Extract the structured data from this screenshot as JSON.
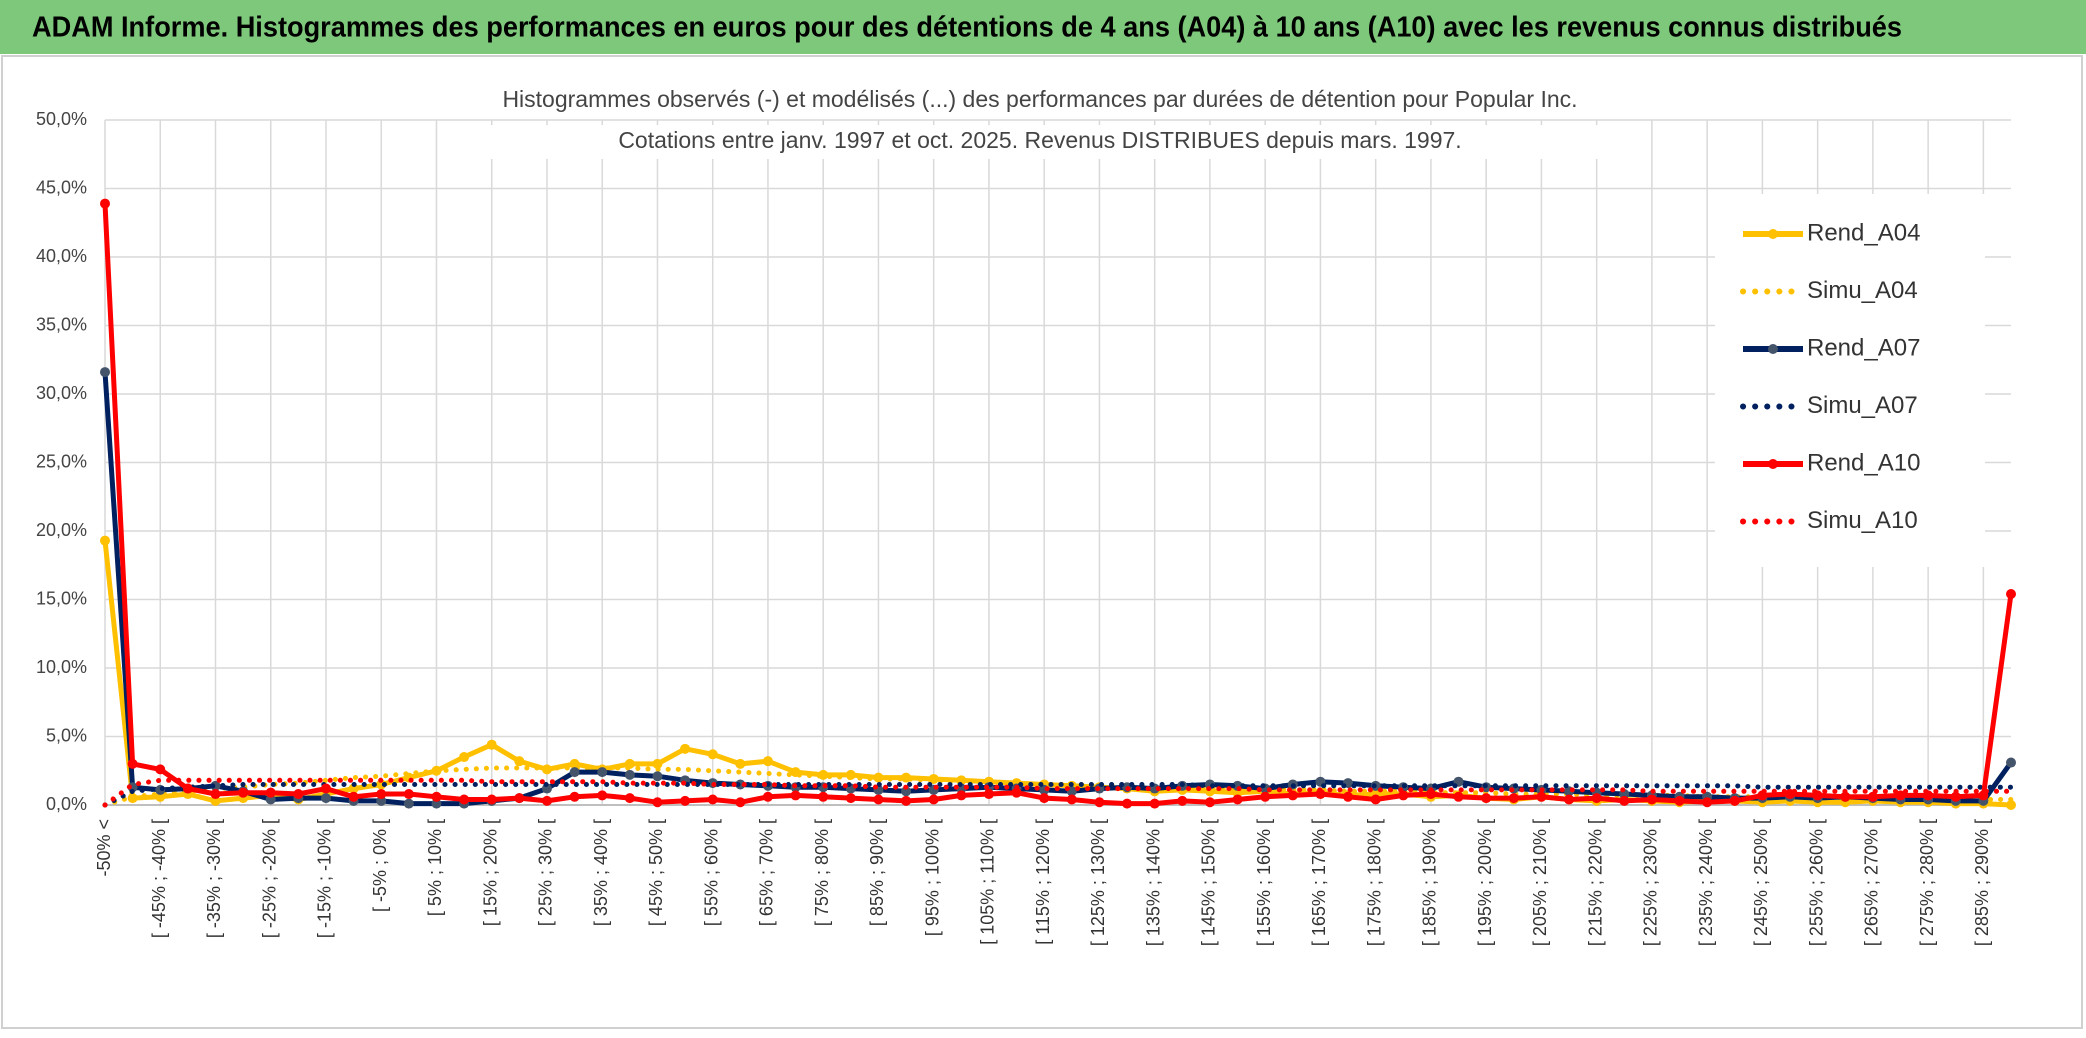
{
  "header": "ADAM Informe. Histogrammes des performances en euros pour des détentions de 4 ans (A04) à 10 ans (A10) avec les revenus connus distribués",
  "chart_data": {
    "type": "line",
    "title": [
      "Histogrammes observés (-) et modélisés (...) des performances par durées de détention pour Popular Inc.",
      "Cotations entre janv. 1997 et oct. 2025. Revenus DISTRIBUES depuis mars. 1997."
    ],
    "categories": [
      "-50% <",
      null,
      "[ -45% ; -40% [",
      null,
      "[ -35% ; -30% [",
      null,
      "[ -25% ; -20% [",
      null,
      "[ -15% ; -10% [",
      null,
      "[ -5% ; 0% [",
      null,
      "[ 5% ; 10% [",
      null,
      "[ 15% ; 20% [",
      null,
      "[ 25% ; 30% [",
      null,
      "[ 35% ; 40% [",
      null,
      "[ 45% ; 50% [",
      null,
      "[ 55% ; 60% [",
      null,
      "[ 65% ; 70% [",
      null,
      "[ 75% ; 80% [",
      null,
      "[ 85% ; 90% [",
      null,
      "[ 95% ; 100% [",
      null,
      "[ 105% ; 110% [",
      null,
      "[ 115% ; 120% [",
      null,
      "[ 125% ; 130% [",
      null,
      "[ 135% ; 140% [",
      null,
      "[ 145% ; 150% [",
      null,
      "[ 155% ; 160% [",
      null,
      "[ 165% ; 170% [",
      null,
      "[ 175% ; 180% [",
      null,
      "[ 185% ; 190% [",
      null,
      "[ 195% ; 200% [",
      null,
      "[ 205% ; 210% [",
      null,
      "[ 215% ; 220% [",
      null,
      "[ 225% ; 230% [",
      null,
      "[ 235% ; 240% [",
      null,
      "[ 245% ; 250% [",
      null,
      "[ 255% ; 260% [",
      null,
      "[ 265% ; 270% [",
      null,
      "[ 275% ; 280% [",
      null,
      "[ 285% ; 290% [",
      null
    ],
    "series": [
      {
        "name": "Rend_A04",
        "color": "#FFC000",
        "style": "solid",
        "marker_color": "#FFC000",
        "values": [
          19.3,
          0.5,
          0.6,
          0.8,
          0.3,
          0.5,
          0.7,
          0.4,
          0.8,
          1.2,
          1.5,
          2.0,
          2.5,
          3.5,
          4.4,
          3.2,
          2.6,
          3.0,
          2.6,
          3.0,
          3.0,
          4.1,
          3.7,
          3.0,
          3.2,
          2.4,
          2.2,
          2.2,
          2.0,
          2.0,
          1.9,
          1.8,
          1.7,
          1.6,
          1.5,
          1.4,
          1.3,
          1.2,
          1.0,
          1.1,
          1.0,
          0.9,
          1.0,
          0.8,
          0.9,
          0.7,
          0.8,
          0.8,
          0.6,
          0.7,
          0.5,
          0.4,
          0.6,
          0.4,
          0.3,
          0.4,
          0.3,
          0.2,
          0.3,
          0.3,
          0.2,
          0.3,
          0.2,
          0.2,
          0.3,
          0.2,
          0.2,
          0.1,
          0.1,
          0.0
        ]
      },
      {
        "name": "Simu_A04",
        "color": "#FFC000",
        "style": "dotted",
        "values": [
          0.0,
          0.6,
          0.8,
          1.0,
          1.2,
          1.3,
          1.5,
          1.6,
          1.8,
          2.0,
          2.1,
          2.3,
          2.5,
          2.6,
          2.7,
          2.7,
          2.7,
          2.7,
          2.7,
          2.7,
          2.6,
          2.6,
          2.5,
          2.4,
          2.3,
          2.2,
          2.1,
          2.0,
          1.9,
          1.9,
          1.8,
          1.7,
          1.7,
          1.6,
          1.5,
          1.5,
          1.4,
          1.4,
          1.3,
          1.3,
          1.2,
          1.2,
          1.2,
          1.1,
          1.1,
          1.0,
          1.0,
          1.0,
          0.9,
          0.9,
          0.9,
          0.8,
          0.8,
          0.8,
          0.7,
          0.7,
          0.7,
          0.7,
          0.6,
          0.6,
          0.6,
          0.6,
          0.6,
          0.5,
          0.5,
          0.5,
          0.5,
          0.5,
          0.4,
          0.4
        ]
      },
      {
        "name": "Rend_A07",
        "color": "#002060",
        "style": "solid",
        "marker_color": "#44546A",
        "values": [
          31.6,
          1.3,
          1.1,
          1.2,
          1.4,
          1.0,
          0.4,
          0.5,
          0.5,
          0.3,
          0.3,
          0.1,
          0.1,
          0.1,
          0.3,
          0.5,
          1.2,
          2.4,
          2.4,
          2.2,
          2.1,
          1.8,
          1.6,
          1.5,
          1.4,
          1.3,
          1.3,
          1.2,
          1.1,
          1.0,
          1.1,
          1.2,
          1.3,
          1.2,
          1.1,
          1.0,
          1.2,
          1.3,
          1.2,
          1.4,
          1.5,
          1.4,
          1.2,
          1.5,
          1.7,
          1.6,
          1.4,
          1.3,
          1.2,
          1.7,
          1.3,
          1.2,
          1.1,
          1.0,
          0.9,
          0.8,
          0.7,
          0.6,
          0.6,
          0.5,
          0.5,
          0.6,
          0.5,
          0.6,
          0.5,
          0.4,
          0.4,
          0.3,
          0.3,
          3.1
        ]
      },
      {
        "name": "Simu_A07",
        "color": "#002060",
        "style": "dotted",
        "values": [
          0.0,
          1.0,
          1.2,
          1.3,
          1.4,
          1.5,
          1.5,
          1.5,
          1.5,
          1.5,
          1.5,
          1.5,
          1.5,
          1.5,
          1.5,
          1.5,
          1.5,
          1.5,
          1.5,
          1.5,
          1.5,
          1.5,
          1.5,
          1.5,
          1.5,
          1.5,
          1.5,
          1.5,
          1.5,
          1.5,
          1.5,
          1.5,
          1.5,
          1.5,
          1.5,
          1.5,
          1.5,
          1.5,
          1.5,
          1.5,
          1.4,
          1.4,
          1.4,
          1.4,
          1.4,
          1.4,
          1.4,
          1.4,
          1.4,
          1.4,
          1.4,
          1.4,
          1.4,
          1.4,
          1.4,
          1.4,
          1.4,
          1.4,
          1.4,
          1.4,
          1.3,
          1.3,
          1.3,
          1.3,
          1.3,
          1.3,
          1.3,
          1.3,
          1.3,
          1.3
        ]
      },
      {
        "name": "Rend_A10",
        "color": "#FF0000",
        "style": "solid",
        "marker_color": "#FF0000",
        "values": [
          43.9,
          3.0,
          2.6,
          1.2,
          0.8,
          0.9,
          0.9,
          0.8,
          1.2,
          0.6,
          0.8,
          0.8,
          0.6,
          0.4,
          0.4,
          0.5,
          0.3,
          0.6,
          0.7,
          0.5,
          0.2,
          0.3,
          0.4,
          0.2,
          0.6,
          0.7,
          0.6,
          0.5,
          0.4,
          0.3,
          0.4,
          0.7,
          0.8,
          0.9,
          0.5,
          0.4,
          0.2,
          0.1,
          0.1,
          0.3,
          0.2,
          0.4,
          0.6,
          0.7,
          0.8,
          0.6,
          0.4,
          0.7,
          0.8,
          0.6,
          0.5,
          0.5,
          0.6,
          0.4,
          0.5,
          0.3,
          0.4,
          0.3,
          0.2,
          0.3,
          0.7,
          0.8,
          0.7,
          0.6,
          0.6,
          0.7,
          0.7,
          0.6,
          0.7,
          15.4
        ]
      },
      {
        "name": "Simu_A10",
        "color": "#FF0000",
        "style": "dotted",
        "values": [
          0.0,
          1.5,
          1.8,
          1.8,
          1.8,
          1.8,
          1.8,
          1.8,
          1.8,
          1.8,
          1.8,
          1.8,
          1.8,
          1.8,
          1.7,
          1.7,
          1.7,
          1.7,
          1.7,
          1.6,
          1.6,
          1.6,
          1.5,
          1.5,
          1.5,
          1.4,
          1.4,
          1.4,
          1.3,
          1.3,
          1.3,
          1.3,
          1.3,
          1.3,
          1.2,
          1.2,
          1.2,
          1.2,
          1.2,
          1.2,
          1.2,
          1.2,
          1.1,
          1.1,
          1.1,
          1.1,
          1.1,
          1.1,
          1.1,
          1.1,
          1.1,
          1.1,
          1.1,
          1.1,
          1.1,
          1.1,
          1.0,
          1.0,
          1.0,
          1.0,
          1.0,
          1.0,
          1.0,
          1.0,
          1.0,
          1.0,
          1.0,
          1.0,
          1.0,
          1.0
        ]
      }
    ],
    "ylim": [
      0,
      50
    ],
    "yticks": [
      {
        "value": 0,
        "label": "0,0%"
      },
      {
        "value": 5,
        "label": "5,0%"
      },
      {
        "value": 10,
        "label": "10,0%"
      },
      {
        "value": 15,
        "label": "15,0%"
      },
      {
        "value": 20,
        "label": "20,0%"
      },
      {
        "value": 25,
        "label": "25,0%"
      },
      {
        "value": 30,
        "label": "30,0%"
      },
      {
        "value": 35,
        "label": "35,0%"
      },
      {
        "value": 40,
        "label": "40,0%"
      },
      {
        "value": 45,
        "label": "45,0%"
      },
      {
        "value": 50,
        "label": "50,0%"
      }
    ],
    "grid": true,
    "legend": "right"
  }
}
